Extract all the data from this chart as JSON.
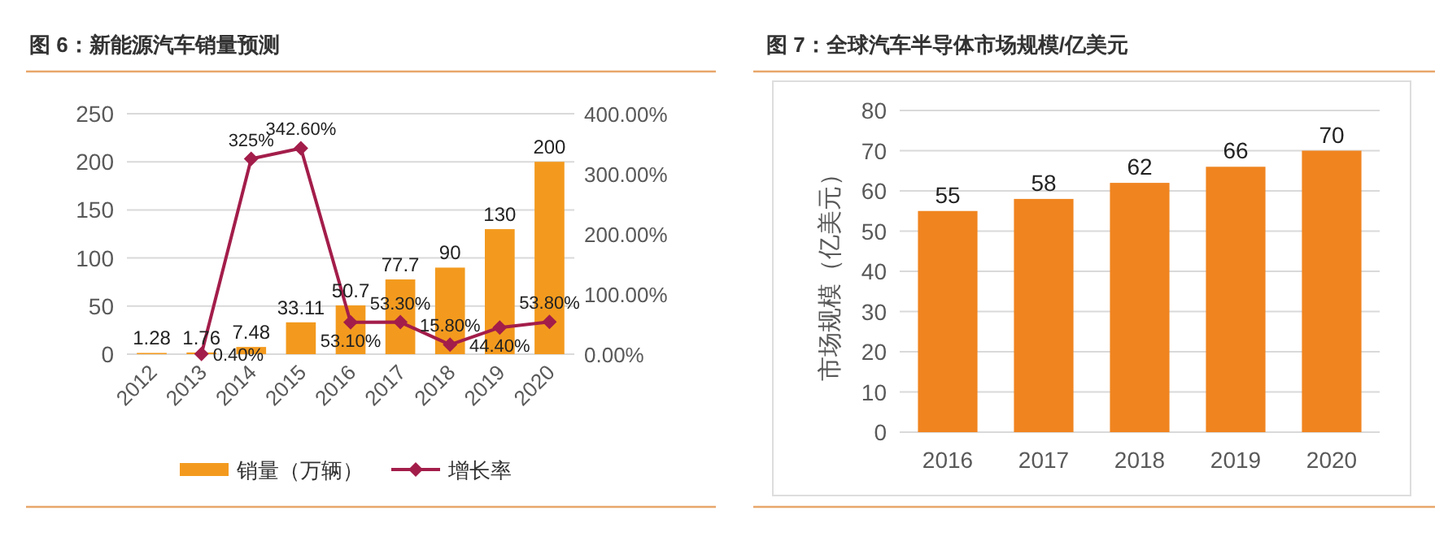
{
  "chart_data": [
    {
      "type": "bar",
      "title": "图 6：新能源汽车销量预测",
      "categories": [
        "2012",
        "2013",
        "2014",
        "2015",
        "2016",
        "2017",
        "2018",
        "2019",
        "2020"
      ],
      "series": [
        {
          "name": "销量（万辆）",
          "type": "bar",
          "color": "#f39a1e",
          "values": [
            1.28,
            1.76,
            7.48,
            33.11,
            50.7,
            77.7,
            90,
            130,
            200
          ],
          "value_labels": [
            "1.28",
            "1.76",
            "7.48",
            "33.11",
            "50.7",
            "77.7",
            "90",
            "130",
            "200"
          ]
        },
        {
          "name": "增长率",
          "type": "line",
          "axis": "y2",
          "color": "#a31d4a",
          "values": [
            null,
            0.4,
            325,
            342.6,
            53.1,
            53.3,
            15.8,
            44.4,
            53.8
          ],
          "value_labels": [
            null,
            "0.40%",
            "325%",
            "342.60%",
            "53.10%",
            "53.30%",
            "15.80%",
            "44.40%",
            "53.80%"
          ]
        }
      ],
      "ylim": [
        0,
        250
      ],
      "yticks": [
        0,
        50,
        100,
        150,
        200,
        250
      ],
      "y2lim": [
        0,
        400
      ],
      "y2ticks": [
        {
          "value": 0,
          "label": "0.00%"
        },
        {
          "value": 100,
          "label": "100.00%"
        },
        {
          "value": 200,
          "label": "200.00%"
        },
        {
          "value": 300,
          "label": "300.00%"
        },
        {
          "value": 400,
          "label": "400.00%"
        }
      ],
      "grid": "y",
      "legend": "bottom",
      "marker": "diamond"
    },
    {
      "type": "bar",
      "title": "图 7：全球汽车半导体市场规模/亿美元",
      "ylabel": "市场规模（亿美元）",
      "categories": [
        "2016",
        "2017",
        "2018",
        "2019",
        "2020"
      ],
      "values": [
        55,
        58,
        62,
        66,
        70
      ],
      "color": "#f0841f",
      "data_labels": true,
      "ylim": [
        0,
        80
      ],
      "yticks": [
        0,
        10,
        20,
        30,
        40,
        50,
        60,
        70,
        80
      ],
      "grid": "y",
      "legend": false
    }
  ]
}
